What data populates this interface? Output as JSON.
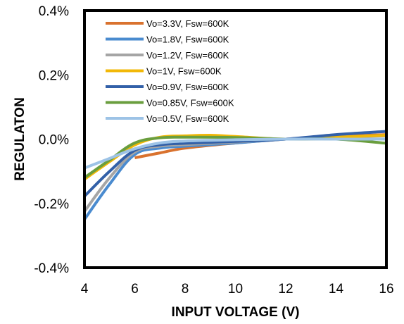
{
  "chart_data": {
    "type": "line",
    "title": "",
    "xlabel": "INPUT VOLTAGE (V)",
    "ylabel": "REGULATON",
    "xlim": [
      4,
      16
    ],
    "ylim": [
      -0.4,
      0.4
    ],
    "x_ticks": [
      "4",
      "6",
      "8",
      "10",
      "12",
      "14",
      "16"
    ],
    "y_ticks": [
      "-0.4%",
      "-0.2%",
      "0.0%",
      "0.2%",
      "0.4%"
    ],
    "grid": false,
    "legend_position": "top-left",
    "series": [
      {
        "name": "Vo=3.3V, Fsw=600K",
        "color": "#D9722E",
        "x": [
          6,
          7,
          8,
          10,
          12,
          14,
          16
        ],
        "y": [
          -0.058,
          -0.043,
          -0.028,
          -0.012,
          0.0,
          0.008,
          0.014
        ]
      },
      {
        "name": "Vo=1.8V, Fsw=600K",
        "color": "#4A8BCF",
        "x": [
          4,
          5,
          6,
          7,
          8,
          10,
          12,
          14,
          16
        ],
        "y": [
          -0.25,
          -0.14,
          -0.048,
          -0.028,
          -0.022,
          -0.012,
          0.0,
          0.006,
          0.012
        ]
      },
      {
        "name": "Vo=1.2V, Fsw=600K",
        "color": "#A5A5A5",
        "x": [
          4,
          5,
          6,
          7,
          8,
          10,
          12,
          14,
          16
        ],
        "y": [
          -0.225,
          -0.12,
          -0.04,
          -0.022,
          -0.017,
          -0.009,
          0.0,
          0.006,
          0.01
        ]
      },
      {
        "name": "Vo=1V, Fsw=600K",
        "color": "#F2B807",
        "x": [
          4,
          5,
          6,
          7,
          8,
          9,
          10,
          12,
          14,
          16
        ],
        "y": [
          -0.125,
          -0.07,
          -0.018,
          0.006,
          0.01,
          0.012,
          0.008,
          0.0,
          0.006,
          0.012
        ]
      },
      {
        "name": "Vo=0.9V, Fsw=600K",
        "color": "#3260A8",
        "x": [
          4,
          5,
          6,
          7,
          8,
          10,
          12,
          14,
          16
        ],
        "y": [
          -0.178,
          -0.1,
          -0.035,
          -0.018,
          -0.013,
          -0.007,
          0.0,
          0.014,
          0.024
        ]
      },
      {
        "name": "Vo=0.85V, Fsw=600K",
        "color": "#6A9E3E",
        "x": [
          4,
          5,
          6,
          7,
          8,
          10,
          12,
          14,
          16
        ],
        "y": [
          -0.12,
          -0.065,
          -0.012,
          0.004,
          0.006,
          0.005,
          0.0,
          0.0,
          -0.013
        ]
      },
      {
        "name": "Vo=0.5V, Fsw=600K",
        "color": "#9DC3E6",
        "x": [
          4,
          5,
          6,
          7,
          8,
          10,
          12,
          14,
          16
        ],
        "y": [
          -0.09,
          -0.06,
          -0.03,
          -0.012,
          -0.006,
          -0.002,
          0.0,
          0.0,
          0.0
        ]
      }
    ]
  }
}
